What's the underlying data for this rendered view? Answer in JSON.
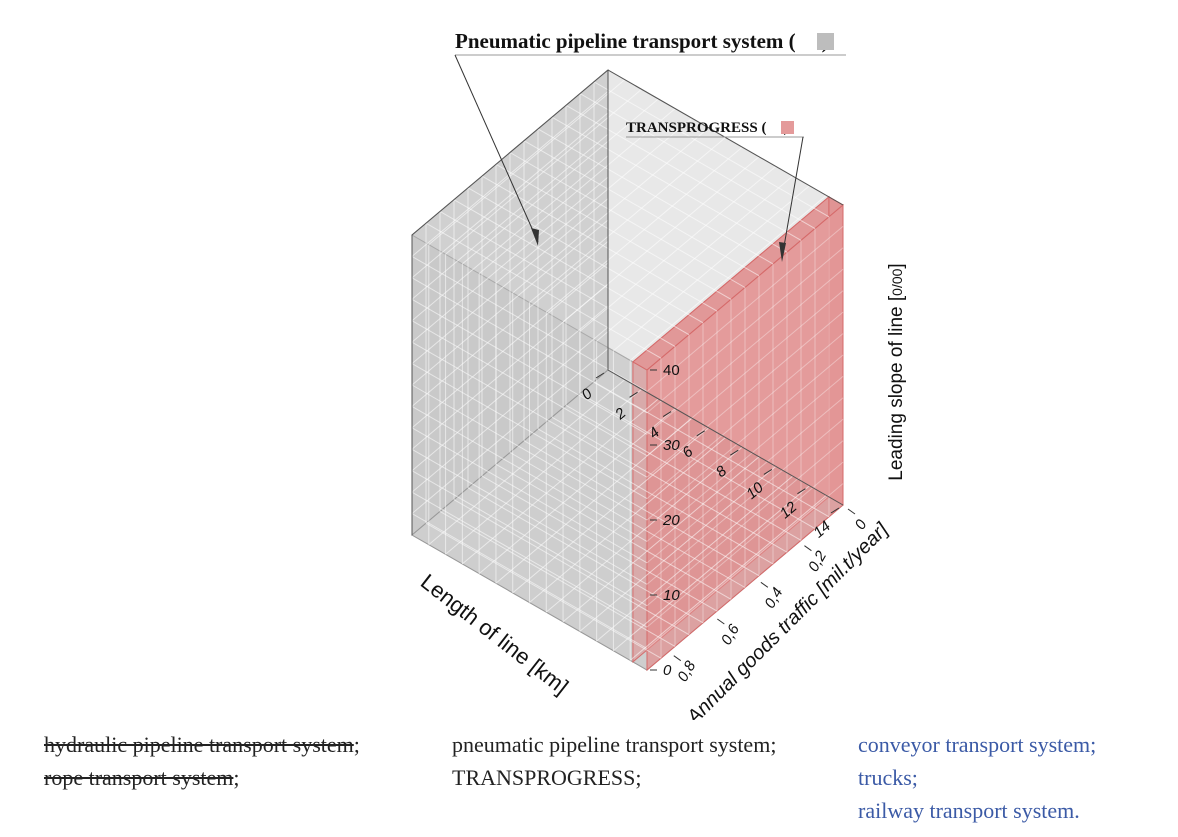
{
  "chart_data": {
    "type": "3d-box",
    "annotations": {
      "pneumatic": "Pneumatic pipeline transport system (",
      "pneumatic_close": ")",
      "transprogress": "TRANSPROGRESS (",
      "transprogress_close": ")"
    },
    "axes": {
      "x": {
        "label": "Length of line [km]",
        "range": [
          0,
          14
        ],
        "ticks": [
          "0",
          "2",
          "4",
          "6",
          "8",
          "10",
          "12",
          "14"
        ]
      },
      "y": {
        "label": "Annual goods traffic [mil.t/year]",
        "range": [
          0,
          0.9
        ],
        "ticks": [
          "0",
          "0,2",
          "0,4",
          "0,6",
          "0,8"
        ]
      },
      "z": {
        "label": "Leading slope of line [",
        "label_unit": "0/00",
        "label_close": "]",
        "range": [
          0,
          40
        ],
        "ticks": [
          "0",
          "10",
          "20",
          "30",
          "40"
        ]
      }
    },
    "series": [
      {
        "name": "Pneumatic pipeline transport system",
        "color": "#c8c8c8",
        "region": {
          "x": [
            0,
            14
          ],
          "y": [
            0,
            0.9
          ],
          "z": [
            0,
            40
          ]
        }
      },
      {
        "name": "TRANSPROGRESS",
        "color": "#e08c8c",
        "region": {
          "x": [
            14,
            14
          ],
          "y": [
            0,
            0.9
          ],
          "z": [
            0,
            40
          ]
        }
      }
    ],
    "colors": {
      "grey_fill": "#c8c8c8",
      "red_fill": "#e08c8c",
      "red_edge": "#d66a6a"
    }
  },
  "legend": {
    "col1": [
      "hydraulic pipeline transport system",
      "rope transport system"
    ],
    "col1_sep": ";",
    "col2": [
      "pneumatic pipeline transport system;",
      "TRANSPROGRESS;"
    ],
    "col3": [
      "conveyor transport system;",
      "trucks;",
      "railway transport system."
    ]
  }
}
